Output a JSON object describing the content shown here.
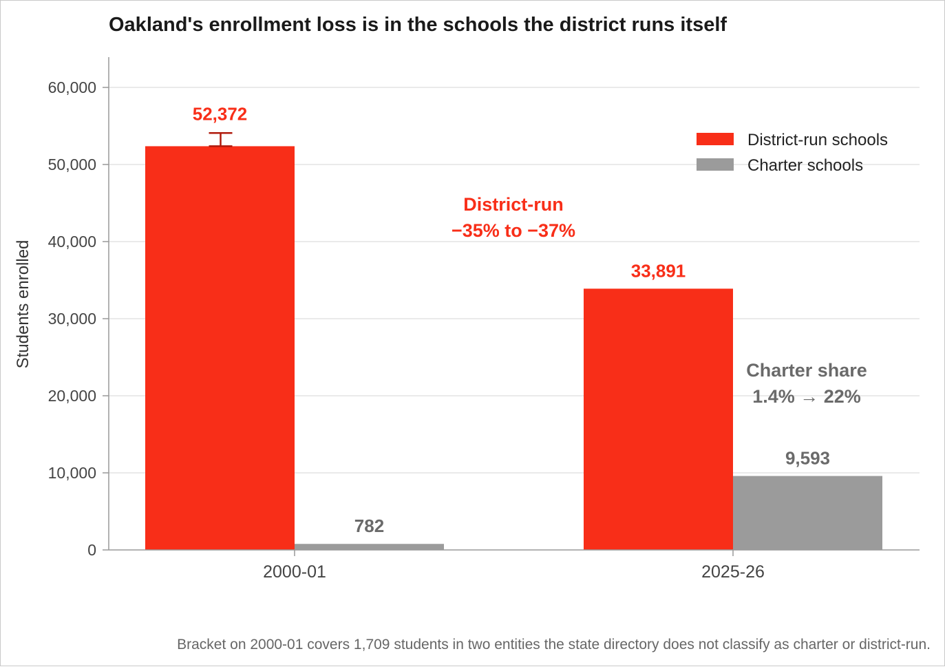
{
  "colors": {
    "district": "#f82e18",
    "charter": "#9b9b9b",
    "bracket": "#b01a0c",
    "grid": "#e4e4e4",
    "axis": "#999999",
    "charter_text": "#6a6a6a"
  },
  "chart_data": {
    "type": "bar",
    "title": "Oakland's enrollment loss is in the schools the district runs itself",
    "xlabel": "",
    "ylabel": "Students enrolled",
    "categories": [
      "2000-01",
      "2025-26"
    ],
    "series": [
      {
        "name": "District-run schools",
        "values": [
          52372,
          33891
        ],
        "labels": [
          "52,372",
          "33,891"
        ]
      },
      {
        "name": "Charter schools",
        "values": [
          782,
          9593
        ],
        "labels": [
          "782",
          "9,593"
        ]
      }
    ],
    "ylim": [
      0,
      64000
    ],
    "yticks": [
      0,
      10000,
      20000,
      30000,
      40000,
      50000,
      60000
    ],
    "ytick_labels": [
      "0",
      "10,000",
      "20,000",
      "30,000",
      "40,000",
      "50,000",
      "60,000"
    ],
    "grid": "horizontal",
    "legend_placement": "top-right",
    "bracket": {
      "category": "2000-01",
      "series": "District-run schools",
      "low": 52372,
      "high": 54081
    },
    "annotations": {
      "district_line1": "District-run",
      "district_line2": "−35% to −37%",
      "charter_line1": "Charter share",
      "charter_line2": "1.4% → 22%"
    },
    "footnote": "Bracket on 2000-01 covers 1,709 students in two entities the state directory does not classify as charter or district-run."
  }
}
